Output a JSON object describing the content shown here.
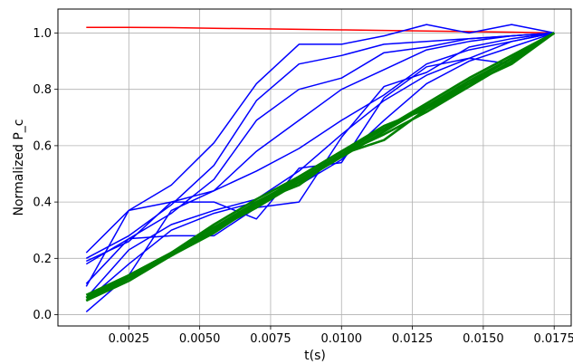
{
  "chart_data": {
    "type": "line",
    "xlabel": "t(s)",
    "ylabel": "Normalized P_c",
    "xlim": [
      0.0,
      0.0181
    ],
    "ylim": [
      -0.04,
      1.085
    ],
    "grid": true,
    "x": [
      0.001,
      0.0025,
      0.004,
      0.0055,
      0.007,
      0.0085,
      0.01,
      0.0115,
      0.013,
      0.0145,
      0.016,
      0.0175
    ],
    "x_ticks": [
      "0.0025",
      "0.0050",
      "0.0075",
      "0.0100",
      "0.0125",
      "0.0150",
      "0.0175"
    ],
    "x_tick_values": [
      0.0025,
      0.005,
      0.0075,
      0.01,
      0.0125,
      0.015,
      0.0175
    ],
    "y_ticks": [
      "0.0",
      "0.2",
      "0.4",
      "0.6",
      "0.8",
      "1.0"
    ],
    "y_tick_values": [
      0.0,
      0.2,
      0.4,
      0.6,
      0.8,
      1.0
    ],
    "series": [
      {
        "color": "#ff0000",
        "values": [
          1.02,
          1.02,
          1.019,
          1.017,
          1.015,
          1.013,
          1.011,
          1.009,
          1.007,
          1.005,
          1.003,
          1.0
        ]
      },
      {
        "color": "#0000ff",
        "values": [
          0.22,
          0.37,
          0.46,
          0.61,
          0.82,
          0.96,
          0.96,
          0.99,
          1.03,
          1.0,
          1.03,
          1.0
        ]
      },
      {
        "color": "#0000ff",
        "values": [
          0.2,
          0.28,
          0.39,
          0.53,
          0.76,
          0.89,
          0.92,
          0.96,
          0.97,
          0.98,
          0.99,
          1.0
        ]
      },
      {
        "color": "#0000ff",
        "values": [
          0.18,
          0.27,
          0.36,
          0.48,
          0.69,
          0.8,
          0.84,
          0.93,
          0.95,
          0.98,
          0.99,
          1.0
        ]
      },
      {
        "color": "#0000ff",
        "values": [
          0.19,
          0.26,
          0.4,
          0.44,
          0.58,
          0.69,
          0.8,
          0.87,
          0.94,
          0.97,
          0.99,
          1.0
        ]
      },
      {
        "color": "#0000ff",
        "values": [
          0.1,
          0.37,
          0.4,
          0.4,
          0.34,
          0.52,
          0.54,
          0.77,
          0.88,
          0.91,
          0.89,
          1.0
        ]
      },
      {
        "color": "#0000ff",
        "values": [
          0.01,
          0.14,
          0.37,
          0.44,
          0.51,
          0.59,
          0.69,
          0.78,
          0.89,
          0.94,
          0.97,
          1.0
        ]
      },
      {
        "color": "#0000ff",
        "values": [
          0.11,
          0.27,
          0.28,
          0.28,
          0.38,
          0.4,
          0.63,
          0.81,
          0.86,
          0.95,
          0.98,
          1.0
        ]
      },
      {
        "color": "#0000ff",
        "values": [
          0.06,
          0.23,
          0.32,
          0.37,
          0.41,
          0.51,
          0.64,
          0.76,
          0.85,
          0.91,
          0.97,
          1.0
        ]
      },
      {
        "color": "#0000ff",
        "values": [
          0.05,
          0.18,
          0.3,
          0.36,
          0.4,
          0.46,
          0.55,
          0.69,
          0.82,
          0.9,
          0.95,
          1.0
        ]
      },
      {
        "color": "#008000",
        "values": [
          0.05,
          0.13,
          0.21,
          0.3,
          0.4,
          0.46,
          0.57,
          0.62,
          0.73,
          0.82,
          0.89,
          1.0
        ]
      },
      {
        "color": "#008000",
        "values": [
          0.06,
          0.13,
          0.22,
          0.31,
          0.39,
          0.48,
          0.57,
          0.64,
          0.72,
          0.81,
          0.9,
          1.0
        ]
      },
      {
        "color": "#008000",
        "values": [
          0.05,
          0.13,
          0.21,
          0.3,
          0.39,
          0.47,
          0.56,
          0.65,
          0.74,
          0.83,
          0.91,
          1.0
        ]
      },
      {
        "color": "#008000",
        "values": [
          0.06,
          0.14,
          0.22,
          0.31,
          0.4,
          0.48,
          0.57,
          0.66,
          0.74,
          0.82,
          0.91,
          1.0
        ]
      },
      {
        "color": "#008000",
        "values": [
          0.07,
          0.14,
          0.22,
          0.32,
          0.41,
          0.49,
          0.58,
          0.66,
          0.75,
          0.84,
          0.92,
          1.0
        ]
      },
      {
        "color": "#008000",
        "values": [
          0.05,
          0.12,
          0.21,
          0.3,
          0.38,
          0.47,
          0.56,
          0.65,
          0.74,
          0.82,
          0.91,
          1.0
        ]
      },
      {
        "color": "#008000",
        "values": [
          0.06,
          0.13,
          0.21,
          0.29,
          0.39,
          0.49,
          0.58,
          0.67,
          0.73,
          0.81,
          0.9,
          1.0
        ]
      }
    ]
  }
}
